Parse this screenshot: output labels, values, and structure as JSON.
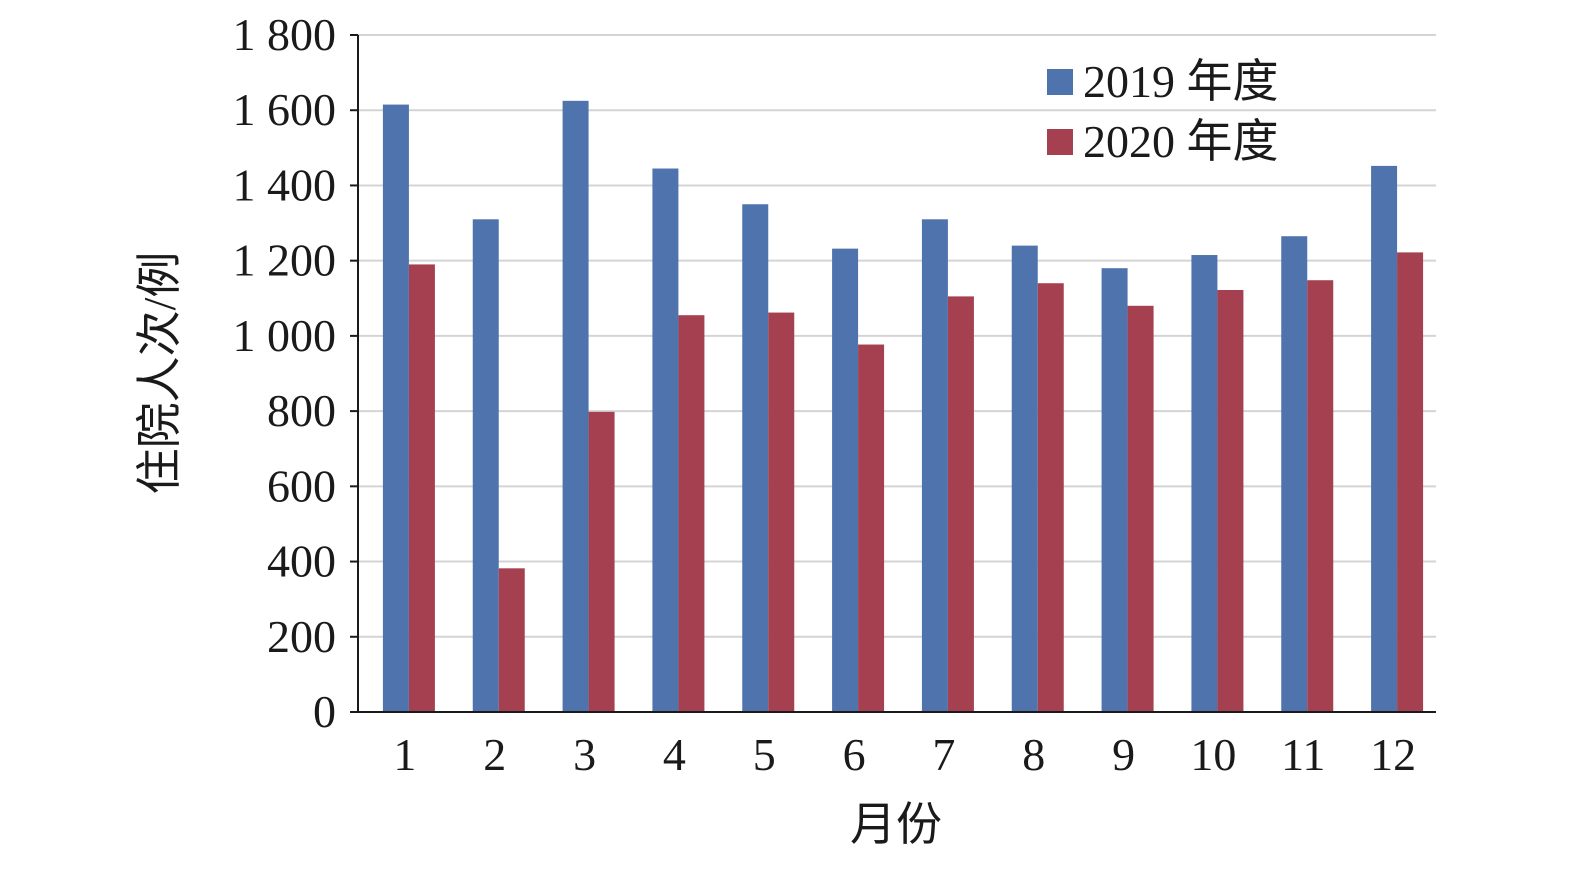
{
  "chart_data": {
    "type": "bar",
    "title": "",
    "xlabel": "月份",
    "ylabel": "住院人次/例",
    "categories": [
      "1",
      "2",
      "3",
      "4",
      "5",
      "6",
      "7",
      "8",
      "9",
      "10",
      "11",
      "12"
    ],
    "series": [
      {
        "name": "2019 年度",
        "color": "#4f73ad",
        "values": [
          1615,
          1310,
          1625,
          1445,
          1350,
          1232,
          1310,
          1240,
          1180,
          1215,
          1265,
          1452
        ]
      },
      {
        "name": "2020 年度",
        "color": "#a4404f",
        "values": [
          1190,
          382,
          798,
          1055,
          1062,
          977,
          1105,
          1140,
          1080,
          1122,
          1148,
          1222
        ]
      }
    ],
    "ylim": [
      0,
      1800
    ],
    "yticks": [
      0,
      200,
      400,
      600,
      800,
      1000,
      1200,
      1400,
      1600,
      1800
    ],
    "ytick_labels": [
      "0",
      "200",
      "400",
      "600",
      "800",
      "1 000",
      "1 200",
      "1 400",
      "1 600",
      "1 800"
    ],
    "grid": true,
    "legend_position": "top-right"
  }
}
